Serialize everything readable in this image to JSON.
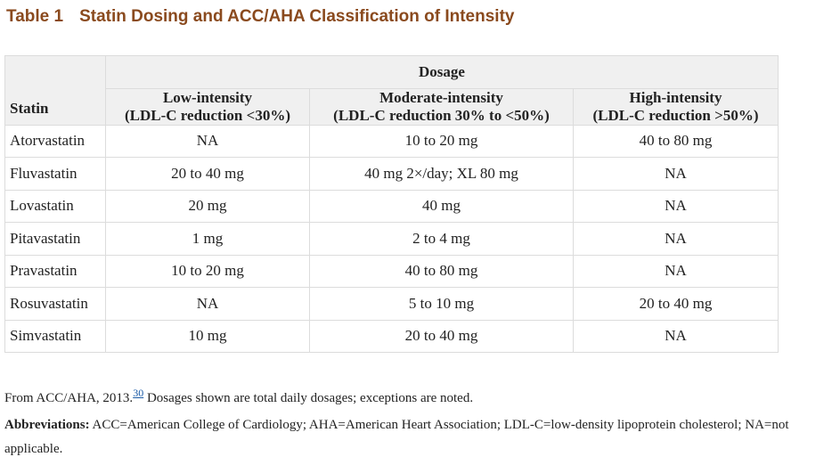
{
  "title": {
    "label": "Table 1",
    "text": "Statin Dosing and ACC/AHA Classification of Intensity"
  },
  "table": {
    "header": {
      "statin": "Statin",
      "dosage": "Dosage",
      "intensities": [
        [
          "Low-intensity",
          "(LDL-C reduction <30%)"
        ],
        [
          "Moderate-intensity",
          "(LDL-C reduction 30% to <50%)"
        ],
        [
          "High-intensity",
          "(LDL-C reduction >50%)"
        ]
      ]
    },
    "rows": [
      [
        "Atorvastatin",
        "NA",
        "10 to 20 mg",
        "40 to 80 mg"
      ],
      [
        "Fluvastatin",
        "20 to 40 mg",
        "40 mg 2×/day; XL 80 mg",
        "NA"
      ],
      [
        "Lovastatin",
        "20 mg",
        "40 mg",
        "NA"
      ],
      [
        "Pitavastatin",
        "1 mg",
        "2 to 4 mg",
        "NA"
      ],
      [
        "Pravastatin",
        "10 to 20 mg",
        "40 to 80 mg",
        "NA"
      ],
      [
        "Rosuvastatin",
        "NA",
        "5 to 10 mg",
        "20 to 40 mg"
      ],
      [
        "Simvastatin",
        "10 mg",
        "20 to 40 mg",
        "NA"
      ]
    ]
  },
  "footnotes": {
    "source": "From ACC/AHA, 2013.",
    "ref": "30",
    "note": "Dosages shown are total daily dosages; exceptions are noted.",
    "abbreviations_label": "Abbreviations:",
    "abbreviations": "ACC=American College of Cardiology; AHA=American Heart Association; LDL-C=low-density lipoprotein cholesterol; NA=not applicable."
  }
}
